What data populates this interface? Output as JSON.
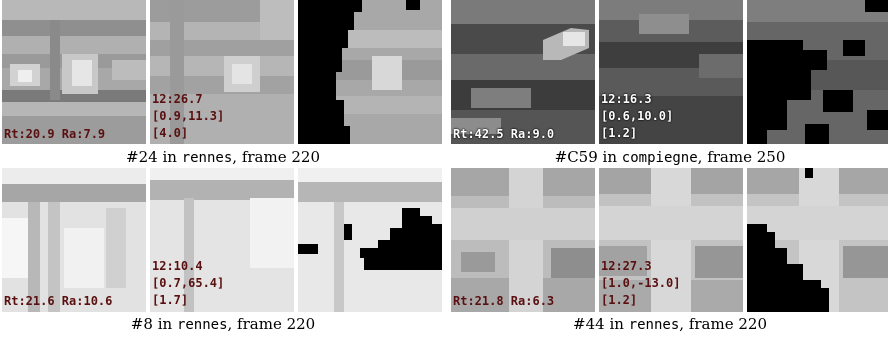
{
  "groups": [
    {
      "caption": {
        "id": "#24",
        "in": "in",
        "dataset": "rennes",
        "frame_text": ", frame 220"
      },
      "rt_ra": "Rt:20.9 Ra:7.9",
      "info": [
        "12:26.7",
        "[0.9,11.3]",
        "[4.0]"
      ]
    },
    {
      "caption": {
        "id": "#C59",
        "in": "in",
        "dataset": "compiegne",
        "frame_text": ", frame 250"
      },
      "rt_ra": "Rt:42.5 Ra:9.0",
      "info": [
        "12:16.3",
        "[0.6,10.0]",
        "[1.2]"
      ]
    },
    {
      "caption": {
        "id": "#8",
        "in": "in",
        "dataset": "rennes",
        "frame_text": ", frame 220"
      },
      "rt_ra": "Rt:21.6 Ra:10.6",
      "info": [
        "12:10.4",
        "[0.7,65.4]",
        "[1.7]"
      ]
    },
    {
      "caption": {
        "id": "#44",
        "in": "in",
        "dataset": "rennes",
        "frame_text": ", frame 220"
      },
      "rt_ra": "Rt:21.8 Ra:6.3",
      "info": [
        "12:27.3",
        "[1.0,-13.0]",
        "[1.2]"
      ]
    }
  ]
}
